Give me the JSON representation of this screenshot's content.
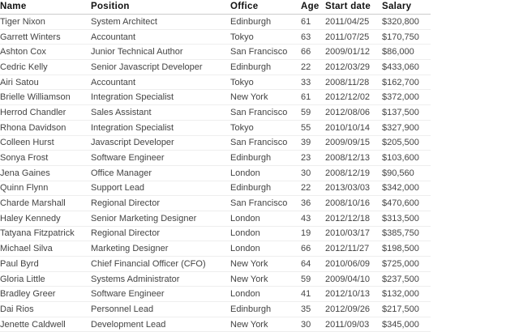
{
  "table": {
    "headers": [
      "Name",
      "Position",
      "Office",
      "Age",
      "Start date",
      "Salary"
    ],
    "rows": [
      [
        "Tiger Nixon",
        "System Architect",
        "Edinburgh",
        "61",
        "2011/04/25",
        "$320,800"
      ],
      [
        "Garrett Winters",
        "Accountant",
        "Tokyo",
        "63",
        "2011/07/25",
        "$170,750"
      ],
      [
        "Ashton Cox",
        "Junior Technical Author",
        "San Francisco",
        "66",
        "2009/01/12",
        "$86,000"
      ],
      [
        "Cedric Kelly",
        "Senior Javascript Developer",
        "Edinburgh",
        "22",
        "2012/03/29",
        "$433,060"
      ],
      [
        "Airi Satou",
        "Accountant",
        "Tokyo",
        "33",
        "2008/11/28",
        "$162,700"
      ],
      [
        "Brielle Williamson",
        "Integration Specialist",
        "New York",
        "61",
        "2012/12/02",
        "$372,000"
      ],
      [
        "Herrod Chandler",
        "Sales Assistant",
        "San Francisco",
        "59",
        "2012/08/06",
        "$137,500"
      ],
      [
        "Rhona Davidson",
        "Integration Specialist",
        "Tokyo",
        "55",
        "2010/10/14",
        "$327,900"
      ],
      [
        "Colleen Hurst",
        "Javascript Developer",
        "San Francisco",
        "39",
        "2009/09/15",
        "$205,500"
      ],
      [
        "Sonya Frost",
        "Software Engineer",
        "Edinburgh",
        "23",
        "2008/12/13",
        "$103,600"
      ],
      [
        "Jena Gaines",
        "Office Manager",
        "London",
        "30",
        "2008/12/19",
        "$90,560"
      ],
      [
        "Quinn Flynn",
        "Support Lead",
        "Edinburgh",
        "22",
        "2013/03/03",
        "$342,000"
      ],
      [
        "Charde Marshall",
        "Regional Director",
        "San Francisco",
        "36",
        "2008/10/16",
        "$470,600"
      ],
      [
        "Haley Kennedy",
        "Senior Marketing Designer",
        "London",
        "43",
        "2012/12/18",
        "$313,500"
      ],
      [
        "Tatyana Fitzpatrick",
        "Regional Director",
        "London",
        "19",
        "2010/03/17",
        "$385,750"
      ],
      [
        "Michael Silva",
        "Marketing Designer",
        "London",
        "66",
        "2012/11/27",
        "$198,500"
      ],
      [
        "Paul Byrd",
        "Chief Financial Officer (CFO)",
        "New York",
        "64",
        "2010/06/09",
        "$725,000"
      ],
      [
        "Gloria Little",
        "Systems Administrator",
        "New York",
        "59",
        "2009/04/10",
        "$237,500"
      ],
      [
        "Bradley Greer",
        "Software Engineer",
        "London",
        "41",
        "2012/10/13",
        "$132,000"
      ],
      [
        "Dai Rios",
        "Personnel Lead",
        "Edinburgh",
        "35",
        "2012/09/26",
        "$217,500"
      ],
      [
        "Jenette Caldwell",
        "Development Lead",
        "New York",
        "30",
        "2011/09/03",
        "$345,000"
      ]
    ]
  }
}
